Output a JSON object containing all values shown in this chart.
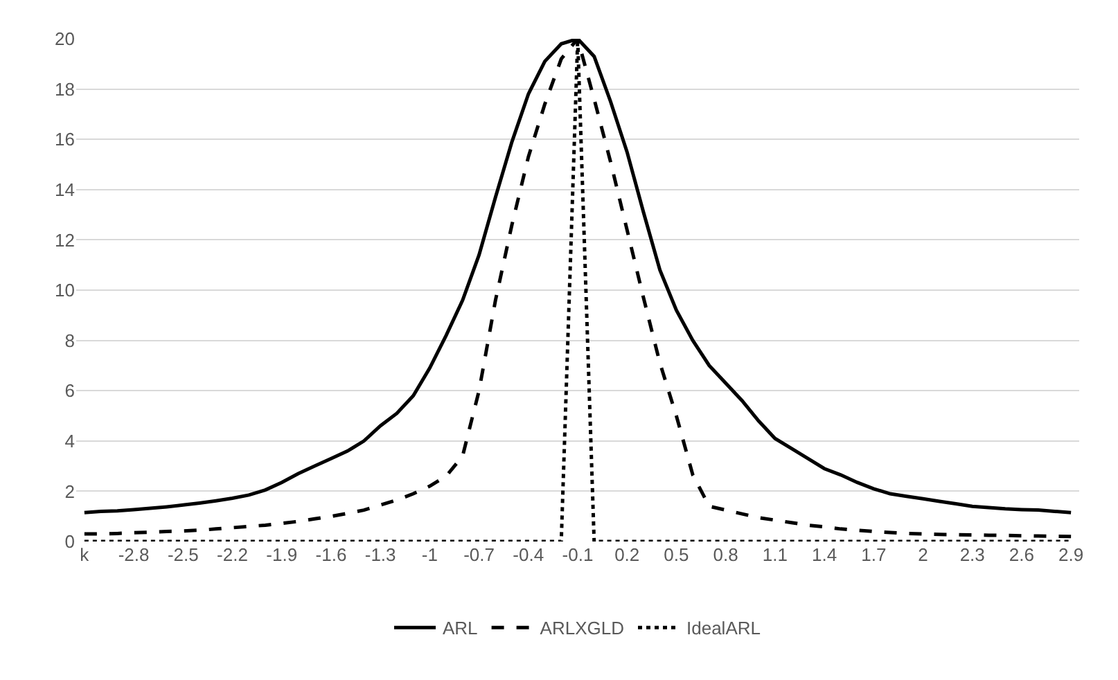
{
  "chart_data": {
    "type": "line",
    "categories": [
      "k",
      null,
      null,
      "-2.8",
      null,
      null,
      "-2.5",
      null,
      null,
      "-2.2",
      null,
      null,
      "-1.9",
      null,
      null,
      "-1.6",
      null,
      null,
      "-1.3",
      null,
      null,
      "-1",
      null,
      null,
      "-0.7",
      null,
      null,
      "-0.4",
      null,
      null,
      "-0.1",
      null,
      null,
      "0.2",
      null,
      null,
      "0.5",
      null,
      null,
      "0.8",
      null,
      null,
      "1.1",
      null,
      null,
      "1.4",
      null,
      null,
      "1.7",
      null,
      null,
      "2",
      null,
      null,
      "2.3",
      null,
      null,
      "2.6",
      null,
      null,
      "2.9"
    ],
    "series": [
      {
        "name": "ARL",
        "color": "#000000",
        "line_style": "solid",
        "values": [
          1.15,
          1.2,
          1.22,
          1.27,
          1.32,
          1.38,
          1.45,
          1.53,
          1.62,
          1.72,
          1.85,
          2.05,
          2.35,
          2.7,
          3.0,
          3.3,
          3.6,
          4.0,
          4.6,
          5.1,
          5.8,
          6.9,
          8.2,
          9.6,
          11.4,
          13.7,
          15.9,
          17.8,
          19.1,
          19.8,
          20,
          19.3,
          17.5,
          15.5,
          13.1,
          10.8,
          9.2,
          8.0,
          7.0,
          6.3,
          5.6,
          4.8,
          4.1,
          3.7,
          3.3,
          2.9,
          2.65,
          2.35,
          2.1,
          1.9,
          1.8,
          1.7,
          1.6,
          1.5,
          1.4,
          1.35,
          1.3,
          1.27,
          1.25,
          1.2,
          1.15
        ]
      },
      {
        "name": "ARLXGLD",
        "color": "#000000",
        "line_style": "dashed",
        "values": [
          0.3,
          0.3,
          0.32,
          0.35,
          0.37,
          0.4,
          0.42,
          0.45,
          0.5,
          0.55,
          0.6,
          0.65,
          0.72,
          0.8,
          0.9,
          1.0,
          1.12,
          1.25,
          1.45,
          1.65,
          1.9,
          2.2,
          2.6,
          3.4,
          6.0,
          9.6,
          12.6,
          15.3,
          17.4,
          19.2,
          20,
          17.6,
          15.1,
          12.4,
          9.7,
          7.1,
          5.0,
          2.65,
          1.4,
          1.25,
          1.1,
          0.95,
          0.85,
          0.75,
          0.65,
          0.58,
          0.5,
          0.45,
          0.4,
          0.36,
          0.32,
          0.3,
          0.28,
          0.27,
          0.26,
          0.25,
          0.24,
          0.23,
          0.22,
          0.21,
          0.2
        ]
      },
      {
        "name": "IdealARL",
        "color": "#000000",
        "line_style": "dotted",
        "values": [
          0,
          0,
          0,
          0,
          0,
          0,
          0,
          0,
          0,
          0,
          0,
          0,
          0,
          0,
          0,
          0,
          0,
          0,
          0,
          0,
          0,
          0,
          0,
          0,
          0,
          0,
          0,
          0,
          0,
          0,
          20,
          0,
          0,
          0,
          0,
          0,
          0,
          0,
          0,
          0,
          0,
          0,
          0,
          0,
          0,
          0,
          0,
          0,
          0,
          0,
          0,
          0,
          0,
          0,
          0,
          0,
          0,
          0,
          0,
          0,
          0
        ]
      }
    ],
    "ylim": [
      0,
      20
    ],
    "yticks": [
      0,
      2,
      4,
      6,
      8,
      10,
      12,
      14,
      16,
      18,
      20
    ],
    "grid": "y",
    "legend": "bottom",
    "marker": "none"
  }
}
